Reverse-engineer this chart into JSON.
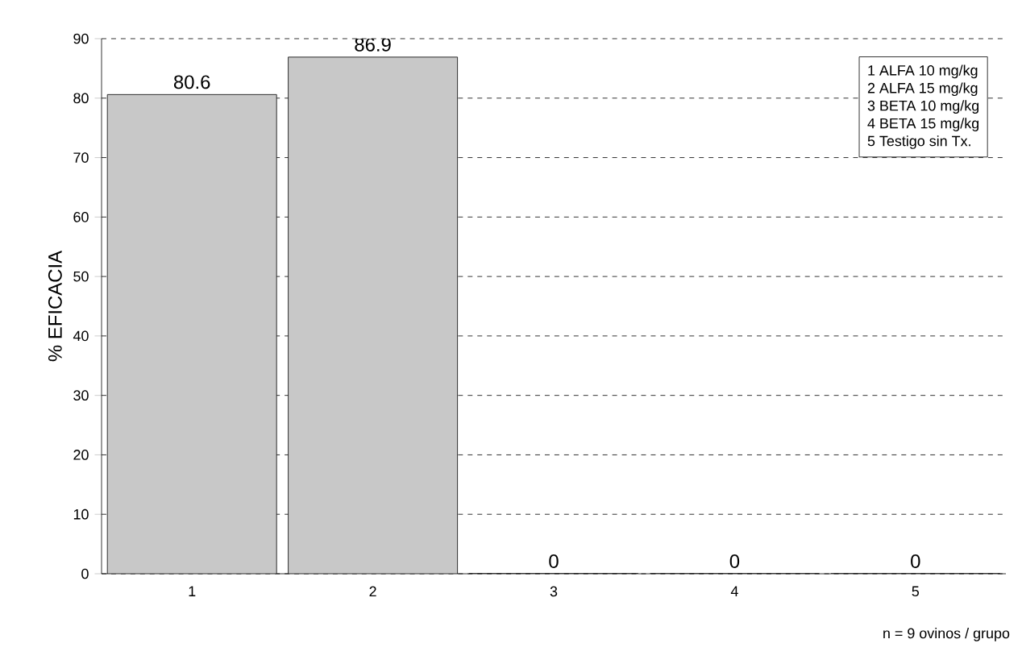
{
  "chart_data": {
    "type": "bar",
    "ylabel": "% EFICACIA",
    "categories": [
      "1",
      "2",
      "3",
      "4",
      "5"
    ],
    "values": [
      80.6,
      86.9,
      0,
      0,
      0
    ],
    "value_labels": [
      "80.6",
      "86.9",
      "0",
      "0",
      "0"
    ],
    "color": "#c8c8c8",
    "ylim": [
      0,
      90
    ],
    "yticks": [
      0,
      10,
      20,
      30,
      40,
      50,
      60,
      70,
      80,
      90
    ],
    "grid": "y",
    "annotations": [
      "1 ALFA 10 mg/kg",
      "2 ALFA 15 mg/kg",
      "3 BETA 10 mg/kg",
      "4 BETA 15 mg/kg",
      "5 Testigo sin Tx.",
      "n = 9 ovinos / grupo"
    ]
  }
}
